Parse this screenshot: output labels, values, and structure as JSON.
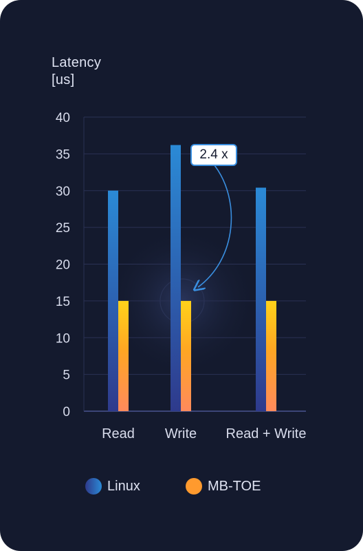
{
  "y_axis_title": [
    "Latency",
    "[us]"
  ],
  "annotation": "2.4 x",
  "legend": [
    {
      "label": "Linux",
      "color": "#2f6fd1"
    },
    {
      "label": "MB-TOE",
      "color": "#ff9a2e"
    }
  ],
  "chart_data": {
    "type": "bar",
    "categories": [
      "Read",
      "Write",
      "Read + Write"
    ],
    "series": [
      {
        "name": "Linux",
        "values": [
          30,
          36.2,
          30.4
        ]
      },
      {
        "name": "MB-TOE",
        "values": [
          15,
          15,
          15
        ]
      }
    ],
    "ylabel": "Latency [us]",
    "ylim": [
      0,
      40
    ],
    "yticks": [
      0,
      5,
      10,
      15,
      20,
      25,
      30,
      35,
      40
    ],
    "grid": true,
    "legend_position": "bottom"
  }
}
